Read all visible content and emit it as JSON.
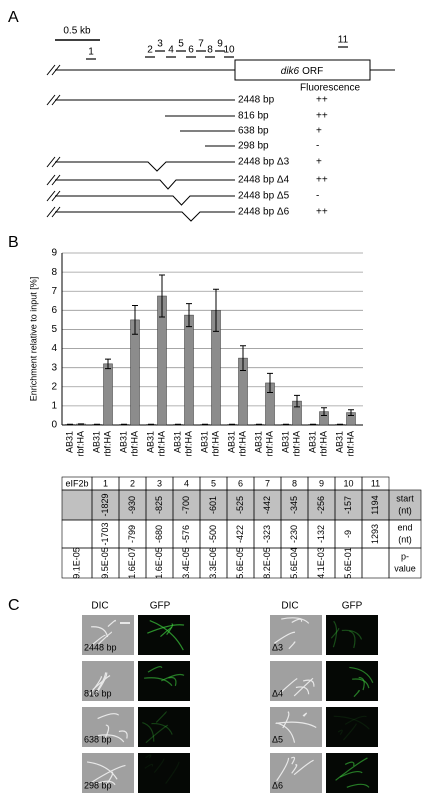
{
  "panel_labels": [
    "A",
    "B",
    "C"
  ],
  "panel_a": {
    "scale_label": "0.5 kb",
    "orf_gene": "dik6",
    "orf_suffix": "ORF",
    "fragment_labels": [
      "1",
      "2",
      "3",
      "4",
      "5",
      "6",
      "7",
      "8",
      "9",
      "10",
      "11"
    ],
    "fluorescence_header": "Fluorescence",
    "constructs": [
      {
        "label": "2448 bp",
        "fluorescence": "++"
      },
      {
        "label": "816 bp",
        "fluorescence": "++"
      },
      {
        "label": "638 bp",
        "fluorescence": "+"
      },
      {
        "label": "298 bp",
        "fluorescence": "-"
      },
      {
        "label": "2448 bp Δ3",
        "fluorescence": "+"
      },
      {
        "label": "2448 bp Δ4",
        "fluorescence": "++"
      },
      {
        "label": "2448 bp Δ5",
        "fluorescence": "-"
      },
      {
        "label": "2448 bp Δ6",
        "fluorescence": "++"
      }
    ]
  },
  "chart_data": {
    "type": "bar",
    "ylabel": "Enrichment relative to input [%]",
    "categories": [
      "AB31",
      "rbf:HA",
      "AB31",
      "rbf:HA",
      "AB31",
      "rbf:HA",
      "AB31",
      "rbf:HA",
      "AB31",
      "rbf:HA",
      "AB31",
      "rbf:HA",
      "AB31",
      "rbf:HA",
      "AB31",
      "rbf:HA",
      "AB31",
      "rbf:HA",
      "AB31",
      "rbf:HA",
      "AB31",
      "rbf:HA"
    ],
    "values": [
      0.03,
      0.05,
      0.03,
      3.2,
      0.03,
      5.5,
      0.03,
      6.75,
      0.03,
      5.75,
      0.03,
      6.0,
      0.03,
      3.5,
      0.03,
      2.2,
      0.03,
      1.25,
      0.03,
      0.7,
      0.03,
      0.65
    ],
    "errors": [
      0.01,
      0.01,
      0.01,
      0.25,
      0.01,
      0.75,
      0.01,
      1.1,
      0.01,
      0.6,
      0.01,
      1.1,
      0.01,
      0.65,
      0.01,
      0.5,
      0.01,
      0.3,
      0.01,
      0.2,
      0.01,
      0.15
    ],
    "color": "#8c8c8c",
    "ylim": [
      0,
      9
    ],
    "yticks": [
      0,
      1,
      2,
      3,
      4,
      5,
      6,
      7,
      8,
      9
    ],
    "grid": true
  },
  "table": {
    "columns": [
      "eIF2b",
      "1",
      "2",
      "3",
      "4",
      "5",
      "6",
      "7",
      "8",
      "9",
      "10",
      "11"
    ],
    "row_labels": [
      [
        "start",
        "(nt)"
      ],
      [
        "end",
        "(nt)"
      ],
      [
        "p-",
        "value"
      ]
    ],
    "start": [
      -1829,
      -930,
      -825,
      -700,
      -601,
      -525,
      -442,
      -345,
      -256,
      -157,
      1194
    ],
    "end": [
      -1703,
      -799,
      -680,
      -576,
      -500,
      -422,
      -323,
      -230,
      -132,
      -9,
      1293
    ],
    "p_value": [
      "9.1E-05",
      "9.5E-05",
      "1.6E-07",
      "1.6E-05",
      "3.4E-05",
      "3.3E-06",
      "5.6E-05",
      "8.2E-05",
      "5.6E-04",
      "4.1E-03",
      "5.6E-01"
    ]
  },
  "panel_c": {
    "headers": [
      "DIC",
      "GFP",
      "DIC",
      "GFP"
    ],
    "labels": [
      "2448 bp",
      "816 bp",
      "638 bp",
      "298 bp",
      "Δ3",
      "Δ4",
      "Δ5",
      "Δ6"
    ]
  }
}
